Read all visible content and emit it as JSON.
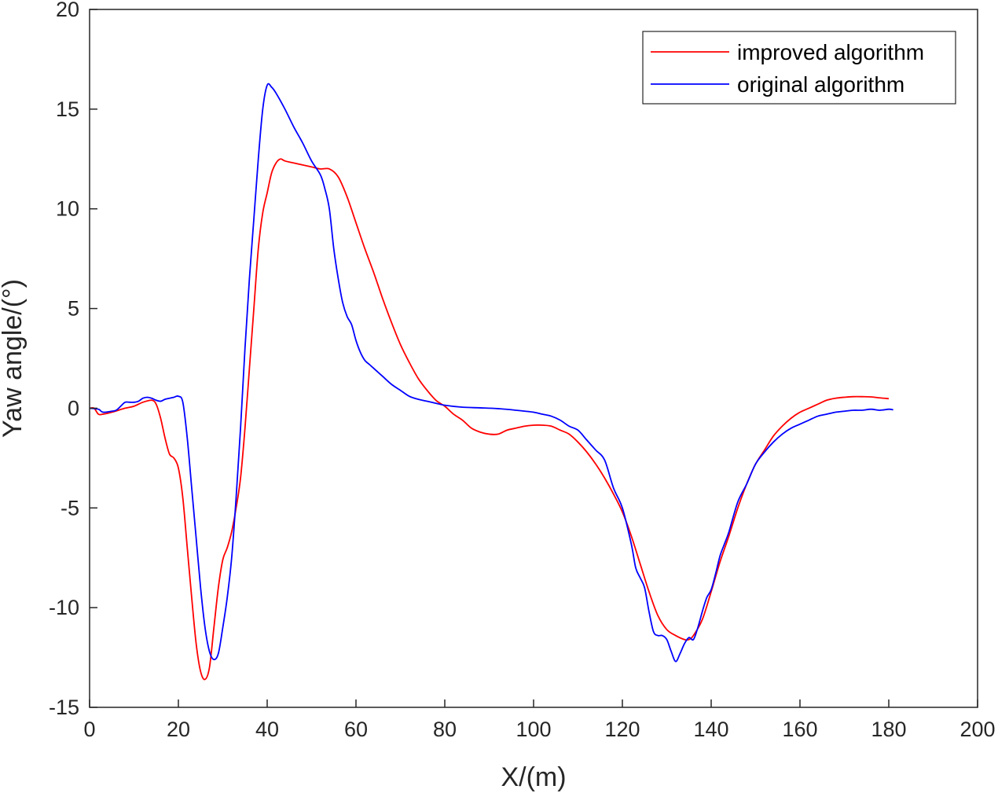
{
  "chart_data": {
    "type": "line",
    "xlabel": "X/(m)",
    "ylabel": "Yaw angle/(°)",
    "xlim": [
      0,
      200
    ],
    "ylim": [
      -15,
      20
    ],
    "xticks": [
      0,
      20,
      40,
      60,
      80,
      100,
      120,
      140,
      160,
      180,
      200
    ],
    "yticks": [
      -15,
      -10,
      -5,
      0,
      5,
      10,
      15,
      20
    ],
    "grid": false,
    "legend_position": "top-right",
    "series": [
      {
        "name": "improved algorithm",
        "color": "#ff0000",
        "points": [
          [
            0,
            0
          ],
          [
            1,
            0
          ],
          [
            2,
            -0.3
          ],
          [
            3,
            -0.3
          ],
          [
            5,
            -0.2
          ],
          [
            8,
            0
          ],
          [
            10,
            0.1
          ],
          [
            12,
            0.3
          ],
          [
            14,
            0.4
          ],
          [
            15,
            0.2
          ],
          [
            16,
            -0.5
          ],
          [
            17,
            -1.5
          ],
          [
            18,
            -2.3
          ],
          [
            19,
            -2.5
          ],
          [
            20,
            -3
          ],
          [
            21,
            -4.5
          ],
          [
            22,
            -7
          ],
          [
            23,
            -9.5
          ],
          [
            24,
            -11.8
          ],
          [
            25,
            -13.2
          ],
          [
            26,
            -13.6
          ],
          [
            27,
            -13
          ],
          [
            28,
            -11
          ],
          [
            29,
            -9
          ],
          [
            30,
            -7.6
          ],
          [
            31,
            -7
          ],
          [
            32,
            -6.2
          ],
          [
            33,
            -5
          ],
          [
            34,
            -3.5
          ],
          [
            35,
            -1
          ],
          [
            36,
            2
          ],
          [
            37,
            5
          ],
          [
            38,
            8
          ],
          [
            39,
            9.8
          ],
          [
            40,
            10.8
          ],
          [
            41,
            11.8
          ],
          [
            42,
            12.3
          ],
          [
            43,
            12.5
          ],
          [
            44,
            12.4
          ],
          [
            46,
            12.3
          ],
          [
            50,
            12.1
          ],
          [
            52,
            12.0
          ],
          [
            54,
            12.0
          ],
          [
            56,
            11.6
          ],
          [
            58,
            10.6
          ],
          [
            60,
            9.3
          ],
          [
            62,
            8.0
          ],
          [
            64,
            6.8
          ],
          [
            66,
            5.5
          ],
          [
            68,
            4.3
          ],
          [
            70,
            3.2
          ],
          [
            72,
            2.3
          ],
          [
            74,
            1.5
          ],
          [
            76,
            0.9
          ],
          [
            78,
            0.4
          ],
          [
            80,
            0.1
          ],
          [
            82,
            -0.3
          ],
          [
            84,
            -0.6
          ],
          [
            86,
            -1.0
          ],
          [
            88,
            -1.2
          ],
          [
            90,
            -1.3
          ],
          [
            92,
            -1.3
          ],
          [
            94,
            -1.1
          ],
          [
            96,
            -1.0
          ],
          [
            98,
            -0.9
          ],
          [
            100,
            -0.85
          ],
          [
            102,
            -0.85
          ],
          [
            104,
            -0.9
          ],
          [
            106,
            -1.1
          ],
          [
            108,
            -1.3
          ],
          [
            110,
            -1.7
          ],
          [
            112,
            -2.2
          ],
          [
            114,
            -2.8
          ],
          [
            116,
            -3.5
          ],
          [
            118,
            -4.3
          ],
          [
            120,
            -5.2
          ],
          [
            122,
            -6.4
          ],
          [
            124,
            -7.8
          ],
          [
            126,
            -9.2
          ],
          [
            128,
            -10.4
          ],
          [
            130,
            -11.1
          ],
          [
            132,
            -11.4
          ],
          [
            134,
            -11.6
          ],
          [
            135,
            -11.6
          ],
          [
            136,
            -11.4
          ],
          [
            138,
            -10.6
          ],
          [
            140,
            -9.2
          ],
          [
            142,
            -7.7
          ],
          [
            144,
            -6.4
          ],
          [
            146,
            -5.0
          ],
          [
            148,
            -3.8
          ],
          [
            150,
            -2.8
          ],
          [
            152,
            -2.1
          ],
          [
            154,
            -1.4
          ],
          [
            156,
            -0.9
          ],
          [
            158,
            -0.5
          ],
          [
            160,
            -0.2
          ],
          [
            162,
            0
          ],
          [
            164,
            0.2
          ],
          [
            166,
            0.4
          ],
          [
            168,
            0.5
          ],
          [
            170,
            0.55
          ],
          [
            172,
            0.58
          ],
          [
            174,
            0.58
          ],
          [
            176,
            0.57
          ],
          [
            178,
            0.52
          ],
          [
            180,
            0.48
          ]
        ]
      },
      {
        "name": "original algorithm",
        "color": "#0000ff",
        "points": [
          [
            0,
            0
          ],
          [
            2,
            -0.05
          ],
          [
            3,
            -0.2
          ],
          [
            5,
            -0.15
          ],
          [
            6,
            -0.1
          ],
          [
            7,
            0.1
          ],
          [
            8,
            0.3
          ],
          [
            9,
            0.3
          ],
          [
            10,
            0.3
          ],
          [
            11,
            0.35
          ],
          [
            12,
            0.5
          ],
          [
            13,
            0.55
          ],
          [
            14,
            0.5
          ],
          [
            15,
            0.4
          ],
          [
            16,
            0.35
          ],
          [
            17,
            0.45
          ],
          [
            18,
            0.5
          ],
          [
            19,
            0.55
          ],
          [
            20,
            0.6
          ],
          [
            21,
            0.3
          ],
          [
            22,
            -1.5
          ],
          [
            23,
            -4
          ],
          [
            24,
            -6.5
          ],
          [
            25,
            -9
          ],
          [
            26,
            -11
          ],
          [
            27,
            -12.2
          ],
          [
            28,
            -12.6
          ],
          [
            29,
            -12.3
          ],
          [
            30,
            -11
          ],
          [
            31,
            -9.5
          ],
          [
            32,
            -7.5
          ],
          [
            33,
            -4.5
          ],
          [
            34,
            -1
          ],
          [
            35,
            3
          ],
          [
            36,
            6.5
          ],
          [
            37,
            9.5
          ],
          [
            38,
            12.5
          ],
          [
            39,
            15
          ],
          [
            40,
            16.2
          ],
          [
            41,
            16.1
          ],
          [
            42,
            15.8
          ],
          [
            44,
            15.0
          ],
          [
            46,
            14.1
          ],
          [
            48,
            13.3
          ],
          [
            50,
            12.4
          ],
          [
            52,
            11.7
          ],
          [
            53,
            11.0
          ],
          [
            54,
            10.0
          ],
          [
            55,
            8.0
          ],
          [
            56,
            6.5
          ],
          [
            57,
            5.3
          ],
          [
            58,
            4.6
          ],
          [
            59,
            4.2
          ],
          [
            60,
            3.4
          ],
          [
            61,
            2.8
          ],
          [
            62,
            2.4
          ],
          [
            63,
            2.2
          ],
          [
            64,
            2.0
          ],
          [
            66,
            1.6
          ],
          [
            68,
            1.2
          ],
          [
            70,
            0.9
          ],
          [
            72,
            0.6
          ],
          [
            74,
            0.45
          ],
          [
            76,
            0.35
          ],
          [
            78,
            0.25
          ],
          [
            80,
            0.15
          ],
          [
            84,
            0.05
          ],
          [
            88,
            0.02
          ],
          [
            92,
            -0.02
          ],
          [
            96,
            -0.1
          ],
          [
            100,
            -0.2
          ],
          [
            102,
            -0.3
          ],
          [
            104,
            -0.4
          ],
          [
            106,
            -0.6
          ],
          [
            108,
            -0.9
          ],
          [
            110,
            -1.1
          ],
          [
            112,
            -1.6
          ],
          [
            114,
            -2.1
          ],
          [
            116,
            -2.6
          ],
          [
            118,
            -4.0
          ],
          [
            120,
            -5.0
          ],
          [
            122,
            -6.8
          ],
          [
            123,
            -8.0
          ],
          [
            124,
            -8.5
          ],
          [
            125,
            -9.0
          ],
          [
            126,
            -10.2
          ],
          [
            127,
            -11.2
          ],
          [
            128,
            -11.4
          ],
          [
            129,
            -11.4
          ],
          [
            130,
            -11.6
          ],
          [
            131,
            -12.2
          ],
          [
            132,
            -12.7
          ],
          [
            133,
            -12.3
          ],
          [
            134,
            -11.8
          ],
          [
            135,
            -11.5
          ],
          [
            136,
            -11.6
          ],
          [
            137,
            -11.0
          ],
          [
            138,
            -10.2
          ],
          [
            139,
            -9.5
          ],
          [
            140,
            -9.1
          ],
          [
            141,
            -8.3
          ],
          [
            142,
            -7.4
          ],
          [
            143,
            -6.8
          ],
          [
            144,
            -6.2
          ],
          [
            146,
            -4.7
          ],
          [
            148,
            -3.8
          ],
          [
            150,
            -2.8
          ],
          [
            152,
            -2.2
          ],
          [
            154,
            -1.7
          ],
          [
            156,
            -1.3
          ],
          [
            158,
            -1.0
          ],
          [
            160,
            -0.8
          ],
          [
            162,
            -0.6
          ],
          [
            164,
            -0.4
          ],
          [
            166,
            -0.3
          ],
          [
            168,
            -0.2
          ],
          [
            170,
            -0.15
          ],
          [
            172,
            -0.1
          ],
          [
            174,
            -0.1
          ],
          [
            176,
            -0.05
          ],
          [
            178,
            -0.1
          ],
          [
            180,
            -0.05
          ],
          [
            181,
            -0.08
          ]
        ]
      }
    ]
  }
}
